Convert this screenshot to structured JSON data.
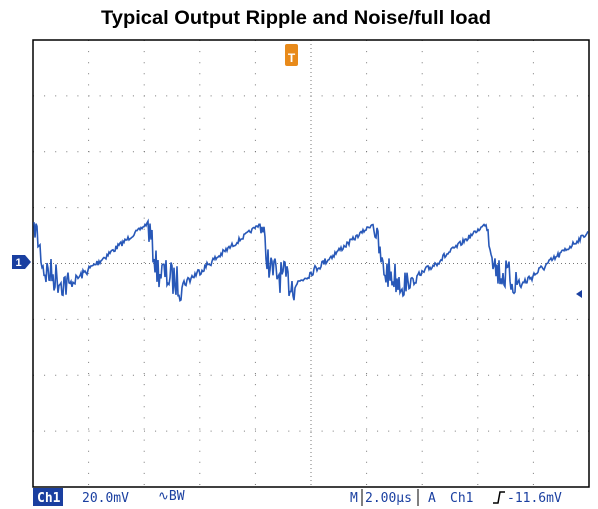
{
  "title": "Typical Output Ripple and Noise/full load",
  "markers": {
    "channel": "1",
    "trigger": "T"
  },
  "status": {
    "channel": "Ch1",
    "scale": "20.0mV",
    "bandwidth": "∿BW",
    "timebase_prefix": "M",
    "timebase": "2.00µs",
    "trigger_mode": "A",
    "trigger_source": "Ch1",
    "trigger_level": "-11.6mV"
  }
}
